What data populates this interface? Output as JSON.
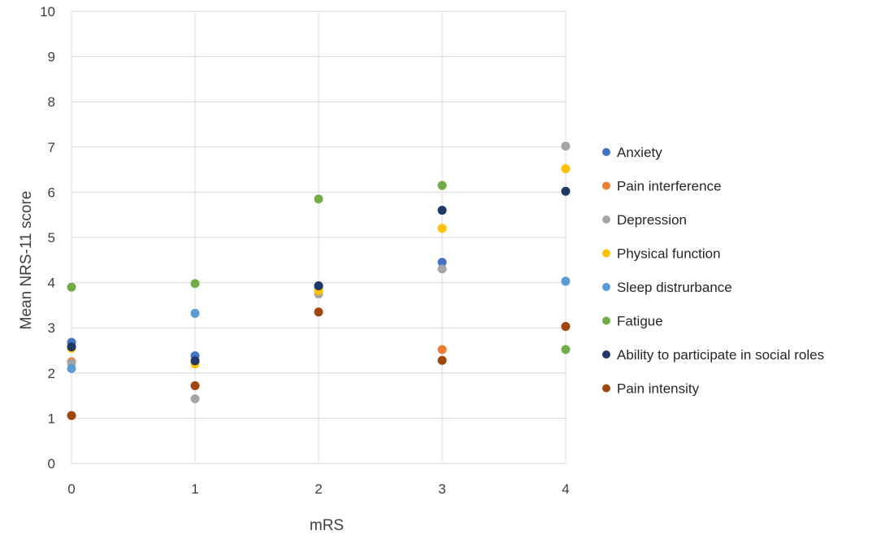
{
  "chart_data": {
    "type": "scatter",
    "title": "",
    "xlabel": "mRS",
    "ylabel": "Mean NRS-11 score",
    "x": [
      0,
      1,
      2,
      3,
      4
    ],
    "xlim": [
      0,
      4
    ],
    "ylim": [
      0,
      10
    ],
    "x_ticks": [
      "0",
      "1",
      "2",
      "3",
      "4"
    ],
    "y_ticks": [
      "0",
      "1",
      "2",
      "3",
      "4",
      "5",
      "6",
      "7",
      "8",
      "9",
      "10"
    ],
    "grid": true,
    "legend_position": "right",
    "series": [
      {
        "name": "Anxiety",
        "color": "#4472C4",
        "values": [
          2.68,
          2.38,
          3.9,
          4.45,
          null
        ]
      },
      {
        "name": "Pain interference",
        "color": "#ED7D31",
        "values": [
          2.25,
          2.25,
          null,
          2.52,
          null
        ]
      },
      {
        "name": "Depression",
        "color": "#A5A5A5",
        "values": [
          2.22,
          1.43,
          3.75,
          4.3,
          7.02
        ]
      },
      {
        "name": "Physical function",
        "color": "#FFC000",
        "values": [
          2.55,
          2.2,
          3.82,
          5.2,
          6.52
        ]
      },
      {
        "name": "Sleep distrurbance",
        "color": "#5B9BD5",
        "values": [
          2.1,
          3.32,
          null,
          null,
          4.03
        ]
      },
      {
        "name": "Fatigue",
        "color": "#70AD47",
        "values": [
          3.9,
          3.98,
          5.85,
          6.15,
          2.52
        ]
      },
      {
        "name": "Ability to participate in social roles",
        "color": "#203864",
        "values": [
          2.58,
          2.27,
          3.93,
          5.6,
          6.02
        ]
      },
      {
        "name": "Pain intensity",
        "color": "#9E480E",
        "values": [
          1.06,
          1.72,
          3.35,
          2.28,
          3.03
        ]
      }
    ]
  }
}
